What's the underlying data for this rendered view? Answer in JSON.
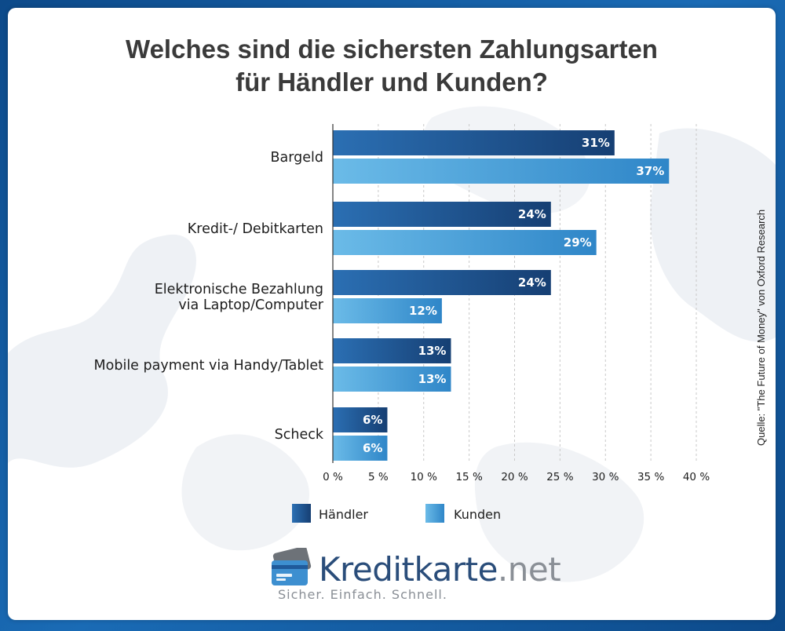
{
  "title_lines": [
    "Welches sind die sichersten Zahlungsarten",
    "für Händler und Kunden?"
  ],
  "source": "Quelle:  \"The Future of Money\" von Oxford Research",
  "brand": {
    "name": "Kreditkarte",
    "tld": ".net",
    "tagline": "Sicher. Einfach. Schnell."
  },
  "colors": {
    "haendler": "#1f5a9b",
    "kunden": "#47a3dc",
    "title": "#3a3a3a",
    "frame": "#1a6bb5"
  },
  "chart_data": {
    "type": "bar",
    "orientation": "horizontal",
    "title": "Welches sind die sichersten Zahlungsarten für Händler und Kunden?",
    "categories": [
      [
        "Bargeld"
      ],
      [
        "Kredit-/ Debitkarten"
      ],
      [
        "Elektronische Bezahlung",
        "via Laptop/Computer"
      ],
      [
        "Mobile payment via Handy/Tablet"
      ],
      [
        "Scheck"
      ]
    ],
    "series": [
      {
        "name": "Händler",
        "values": [
          31,
          24,
          24,
          13,
          6
        ],
        "labels": [
          "31%",
          "24%",
          "24%",
          "13%",
          "6%"
        ]
      },
      {
        "name": "Kunden",
        "values": [
          37,
          29,
          12,
          13,
          6
        ],
        "labels": [
          "37%",
          "29%",
          "12%",
          "13%",
          "6%"
        ]
      }
    ],
    "xlim": [
      0,
      40
    ],
    "xticks": [
      0,
      5,
      10,
      15,
      20,
      25,
      30,
      35,
      40
    ],
    "xtick_labels": [
      "0 %",
      "5 %",
      "10 %",
      "15 %",
      "20 %",
      "25 %",
      "30 %",
      "35 %",
      "40 %"
    ],
    "grid": true,
    "legend": "bottom",
    "xlabel": "",
    "ylabel": ""
  }
}
